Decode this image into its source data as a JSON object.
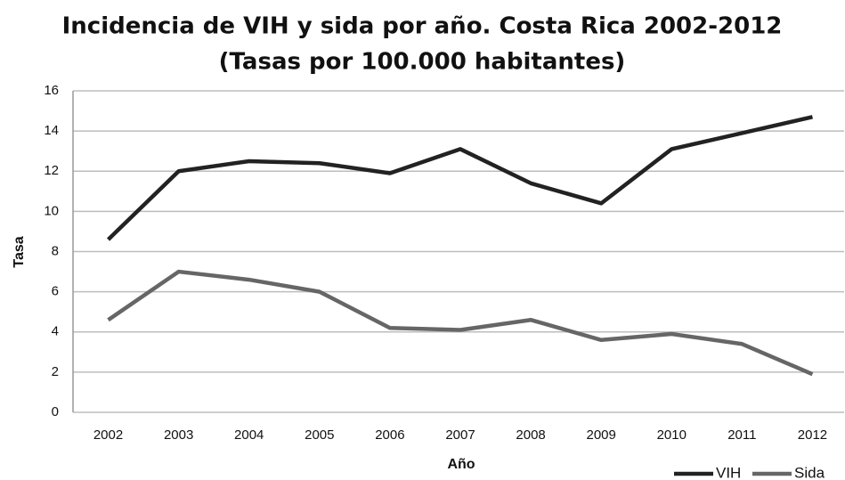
{
  "chart_data": {
    "type": "line",
    "title": "Incidencia de VIH y sida por año. Costa Rica 2002-2012",
    "subtitle": "(Tasas por 100.000 habitantes)",
    "xlabel": "Año",
    "ylabel": "Tasa",
    "categories": [
      "2002",
      "2003",
      "2004",
      "2005",
      "2006",
      "2007",
      "2008",
      "2009",
      "2010",
      "2011",
      "2012"
    ],
    "series": [
      {
        "name": "VIH",
        "color": "#222222",
        "values": [
          8.6,
          12.0,
          12.5,
          12.4,
          11.9,
          13.1,
          11.4,
          10.4,
          13.1,
          13.9,
          14.7
        ]
      },
      {
        "name": "Sida",
        "color": "#666666",
        "values": [
          4.6,
          7.0,
          6.6,
          6.0,
          4.2,
          4.1,
          4.6,
          3.6,
          3.9,
          3.4,
          1.9
        ]
      }
    ],
    "ylim": [
      0,
      16
    ],
    "yticks": [
      0,
      2,
      4,
      6,
      8,
      10,
      12,
      14,
      16
    ],
    "grid": true,
    "legend": "bottom-right"
  }
}
